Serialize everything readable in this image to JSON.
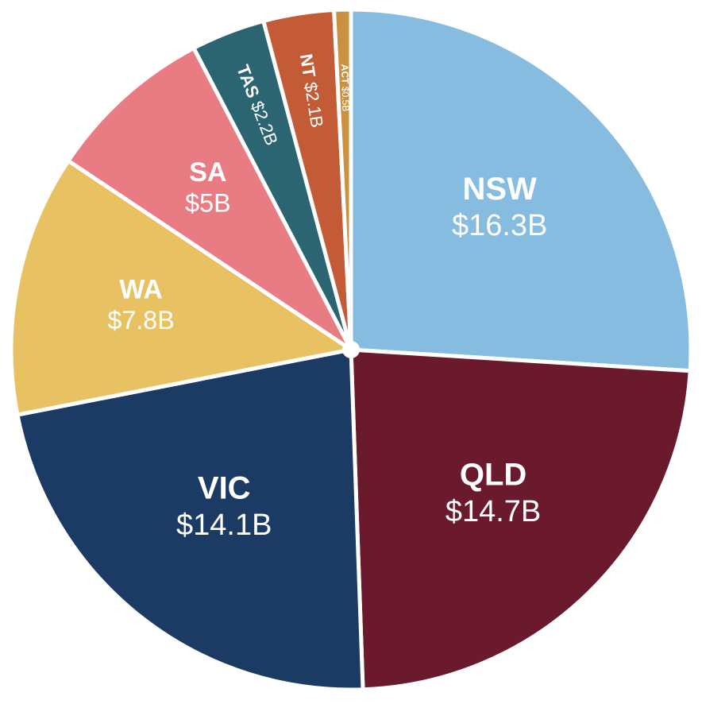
{
  "chart_data": {
    "type": "pie",
    "categories": [
      "NSW",
      "QLD",
      "VIC",
      "WA",
      "SA",
      "TAS",
      "NT",
      "ACT"
    ],
    "values": [
      16.3,
      14.7,
      14.1,
      7.8,
      5,
      2.2,
      2.1,
      0.5
    ],
    "value_labels": [
      "$16.3B",
      "$14.7B",
      "$14.1B",
      "$7.8B",
      "$5B",
      "$2.2B",
      "$2.1B",
      "$0.5B"
    ],
    "colors": [
      "#86bcdf",
      "#6b1a2e",
      "#1b3a64",
      "#e8c262",
      "#e97c82",
      "#2b6571",
      "#c35b36",
      "#c99142"
    ]
  }
}
